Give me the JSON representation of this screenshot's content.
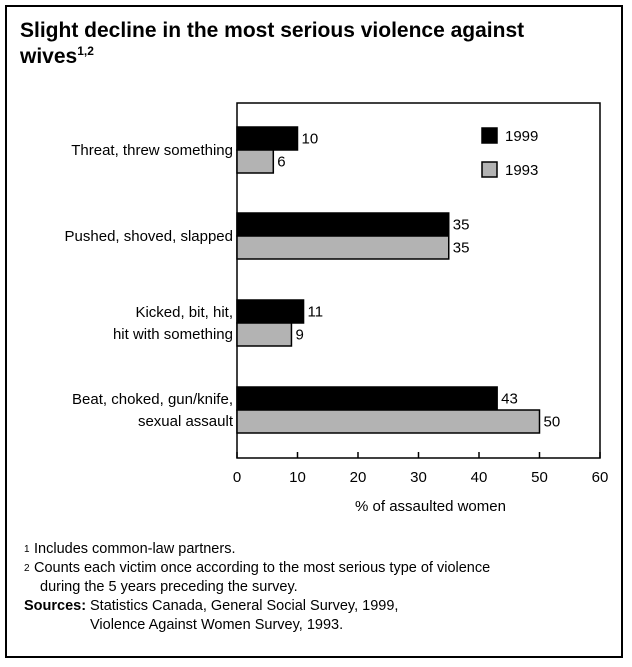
{
  "title": {
    "text": "Slight decline in the most serious violence against wives",
    "superscript": "1,2"
  },
  "chart_data": {
    "type": "bar",
    "orientation": "horizontal",
    "categories": [
      [
        "Threat, threw something"
      ],
      [
        "Pushed, shoved, slapped"
      ],
      [
        "Kicked, bit, hit,",
        "hit with something"
      ],
      [
        "Beat, choked, gun/knife,",
        "sexual assault"
      ]
    ],
    "series": [
      {
        "name": "1999",
        "color": "#000000",
        "values": [
          10,
          35,
          11,
          43
        ]
      },
      {
        "name": "1993",
        "color": "#b3b3b3",
        "values": [
          6,
          35,
          9,
          50
        ]
      }
    ],
    "xlabel": "% of assaulted women",
    "xlim": [
      0,
      60
    ],
    "xticks": [
      0,
      10,
      20,
      30,
      40,
      50,
      60
    ],
    "grid": false,
    "legend_position": "top-right"
  },
  "footnotes": [
    {
      "mark": "1",
      "text": "Includes common-law partners."
    },
    {
      "mark": "2",
      "text": "Counts each victim once according to the most serious type of violence",
      "continuation": "during the 5 years preceding the survey."
    }
  ],
  "sources": {
    "label": "Sources:",
    "lines": [
      "Statistics Canada, General Social Survey, 1999,",
      "Violence Against Women Survey, 1993."
    ]
  }
}
